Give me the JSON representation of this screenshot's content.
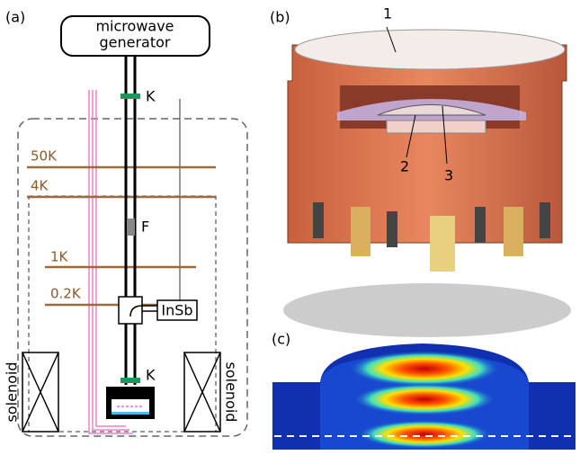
{
  "panel_a": {
    "label": "(a)",
    "generator": [
      "microwave",
      "generator"
    ],
    "k_top": "K",
    "k_bottom": "K",
    "stages": [
      "50K",
      "4K",
      "1K",
      "0.2K"
    ],
    "filter": "F",
    "detector": "InSb",
    "solenoid_left": "solenoid",
    "solenoid_right": "solenoid"
  },
  "panel_b": {
    "label": "(b)",
    "callouts": [
      "1",
      "2",
      "3"
    ]
  },
  "panel_c": {
    "label": "(c)"
  }
}
